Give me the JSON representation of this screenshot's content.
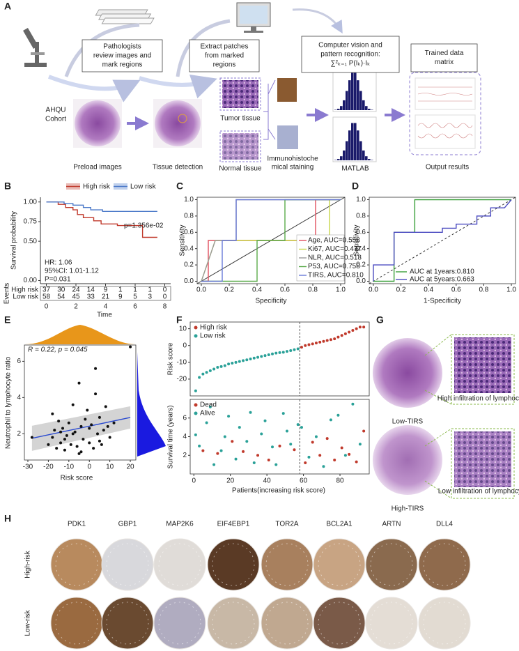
{
  "panel_labels": [
    "A",
    "B",
    "C",
    "D",
    "E",
    "F",
    "G",
    "H"
  ],
  "workflow": {
    "steps": [
      [
        "Pathologists",
        "review images and",
        "mark regions"
      ],
      [
        "Extract patches",
        "from marked",
        "regions"
      ],
      [
        "Computer vision and",
        "pattern recognition:",
        "∑²ₖ₌₁ P(Iₖ)·Iₖ"
      ],
      [
        "Trained data",
        "matrix"
      ]
    ],
    "cohort": [
      "AHQU",
      "Cohort"
    ],
    "captions": [
      "Preload images",
      "Tissue detection",
      "Tumor tissue",
      "Normal tissue",
      "MATLAB",
      "Output results"
    ],
    "staining": [
      "Immunohistoche",
      "mical staining"
    ]
  },
  "chart_data": [
    {
      "type": "line",
      "step": true,
      "xlabel": "Time",
      "ylabel": "Survival probability",
      "xlim": [
        -0.4,
        8.4
      ],
      "ylim": [
        -0.04,
        1.06
      ],
      "xticks": [
        0,
        2,
        4,
        6,
        8
      ],
      "yticks": [
        {
          "value": 0,
          "label": "0.00"
        },
        {
          "value": 0.5,
          "label": "0.50"
        },
        {
          "value": 0.75,
          "label": "0.75"
        },
        {
          "value": 1,
          "label": "1.00"
        }
      ],
      "series": [
        {
          "name": "High risk",
          "color": "#c0392b",
          "x": [
            0,
            0.8,
            1.3,
            1.8,
            2.1,
            2.5,
            3.2,
            3.7,
            4.8,
            6.5,
            7.5
          ],
          "values": [
            1.0,
            0.97,
            0.93,
            0.9,
            0.84,
            0.8,
            0.76,
            0.72,
            0.7,
            0.55,
            0.55
          ]
        },
        {
          "name": "Low risk",
          "color": "#4a78c8",
          "x": [
            0,
            1.2,
            1.8,
            2.5,
            3.0,
            3.8,
            4.5,
            7.5
          ],
          "values": [
            1.0,
            0.98,
            0.96,
            0.93,
            0.9,
            0.88,
            0.88,
            0.88
          ]
        }
      ],
      "annotations": [
        "p=1.356e-02",
        "HR: 1.06",
        "95%CI: 1.01-1.12",
        "P=0.031"
      ],
      "risk_table": {
        "title": "Events",
        "times": [
          0,
          1,
          2,
          3,
          4,
          5,
          6,
          7,
          8
        ],
        "rows": [
          {
            "name": "High risk",
            "counts": [
              37,
              30,
              24,
              14,
              9,
              1,
              1,
              1,
              0
            ]
          },
          {
            "name": "Low risk",
            "counts": [
              58,
              54,
              45,
              33,
              21,
              9,
              5,
              3,
              0
            ]
          }
        ]
      }
    },
    {
      "type": "line",
      "xlabel": "Specificity",
      "ylabel": "Sensitivity",
      "xlim": [
        -0.03,
        1.03
      ],
      "ylim": [
        -0.03,
        1.03
      ],
      "xticks": [
        {
          "value": 0,
          "label": "0.0"
        },
        0.2,
        0.4,
        0.6,
        0.8,
        {
          "value": 1,
          "label": "1.0"
        }
      ],
      "yticks": [
        {
          "value": 0,
          "label": "0.0"
        },
        0.2,
        0.4,
        0.6,
        0.8,
        {
          "value": 1,
          "label": "1.0"
        }
      ],
      "series": [
        {
          "name": "Age, AUC=0.558",
          "color": "#e0505f",
          "x": [
            0,
            0.05,
            0.05,
            0.82,
            0.82,
            1
          ],
          "values": [
            0,
            0,
            0.5,
            0.5,
            1,
            1
          ]
        },
        {
          "name": "Ki67, AUC=0.477",
          "color": "#c8d64a",
          "x": [
            0,
            0.1,
            0.92,
            0.92,
            1
          ],
          "values": [
            0,
            0.5,
            0.5,
            1,
            1
          ]
        },
        {
          "name": "NLR, AUC=0.518",
          "color": "#9a9a9a",
          "x": [
            0,
            0.1,
            0.25,
            0.25,
            1
          ],
          "values": [
            0,
            0.5,
            0.5,
            1,
            1
          ]
        },
        {
          "name": "P53, AUC=0.758",
          "color": "#5aaa4a",
          "x": [
            0,
            0.4,
            0.4,
            0.6,
            0.6,
            1
          ],
          "values": [
            0,
            0,
            0.5,
            0.5,
            1,
            1
          ]
        },
        {
          "name": "TIRS, AUC=0.810",
          "color": "#6a7ad8",
          "x": [
            0,
            0.15,
            0.15,
            0.25,
            0.25,
            1
          ],
          "values": [
            0,
            0,
            0.5,
            0.5,
            1,
            1
          ]
        }
      ]
    },
    {
      "type": "line",
      "xlabel": "1-Specificity",
      "ylabel": "Sensitivity",
      "xlim": [
        -0.03,
        1.03
      ],
      "ylim": [
        -0.03,
        1.03
      ],
      "xticks": [
        {
          "value": 0,
          "label": "0.0"
        },
        0.2,
        0.4,
        0.6,
        0.8,
        {
          "value": 1,
          "label": "1.0"
        }
      ],
      "yticks": [
        {
          "value": 0,
          "label": "0.0"
        },
        0.2,
        0.4,
        0.6,
        0.8,
        {
          "value": 1,
          "label": "1.0"
        }
      ],
      "series": [
        {
          "name": "AUC at 1years:0.810",
          "color": "#3aa03a",
          "x": [
            0,
            0.15,
            0.15,
            0.3,
            0.3,
            1
          ],
          "values": [
            0,
            0,
            0.6,
            0.6,
            1,
            1
          ]
        },
        {
          "name": "AUC at 5years:0.663",
          "color": "#4a4ac0",
          "x": [
            0,
            0,
            0.15,
            0.15,
            0.5,
            0.5,
            0.6,
            0.6,
            0.75,
            0.75,
            0.85,
            0.85,
            0.95,
            1
          ],
          "values": [
            0,
            0.2,
            0.2,
            0.6,
            0.6,
            0.65,
            0.65,
            0.7,
            0.7,
            0.8,
            0.8,
            0.9,
            0.9,
            1
          ]
        }
      ]
    },
    {
      "type": "scatter",
      "xlabel": "Risk score",
      "ylabel": "Neutrophil  to lymphocyte ratio",
      "annotations": [
        "R = 0.22, p = 0.045"
      ],
      "xlim": [
        -31.7,
        22.7
      ],
      "ylim": [
        0.55,
        6.9
      ],
      "xticks": [
        -30,
        -20,
        -10,
        0,
        10,
        20
      ],
      "yticks": [
        2,
        4,
        6
      ],
      "color": "#111111",
      "x": [
        -28,
        -20,
        -18,
        -17,
        -16,
        -15,
        -14,
        -13,
        -12,
        -11,
        -10,
        -9,
        -8,
        -7,
        -6,
        -5,
        -4,
        -3,
        -2,
        -1,
        0,
        1,
        2,
        3,
        4,
        5,
        6,
        7,
        8,
        10,
        12,
        -8,
        -4,
        -12,
        0,
        5,
        -18,
        -14,
        3,
        9,
        20,
        -5
      ],
      "values": [
        1.8,
        1.4,
        3.1,
        2.2,
        1.2,
        2.7,
        1.5,
        2.3,
        1.1,
        1.9,
        2.6,
        1.4,
        3.6,
        2.1,
        1.3,
        4.8,
        2.4,
        1.7,
        2.8,
        3.3,
        1.5,
        2.5,
        1.2,
        4.2,
        2.0,
        2.9,
        1.4,
        2.2,
        3.5,
        1.8,
        2.6,
        2.0,
        1.0,
        1.7,
        2.3,
        1.6,
        1.8,
        2.1,
        5.6,
        2.4,
        6.8,
        0.9
      ],
      "fit": {
        "x": [
          -28,
          20
        ],
        "values": [
          1.75,
          2.9
        ],
        "color": "#2a4ad0"
      }
    },
    {
      "type": "scatter",
      "ylabel": "Risk score",
      "xlim": [
        -2,
        96
      ],
      "ylim": [
        -30,
        14
      ],
      "yticks": [
        -20,
        -10,
        0,
        10
      ],
      "vline": 58,
      "series": [
        {
          "name": "High risk",
          "color": "#c0392b",
          "x": [
            59,
            61,
            63,
            65,
            67,
            69,
            71,
            73,
            75,
            77,
            79,
            81,
            83,
            85,
            87,
            89,
            91,
            93
          ],
          "values": [
            -1,
            0,
            0.5,
            1,
            1.5,
            2,
            2.5,
            3,
            3.5,
            4,
            5,
            6,
            7,
            8,
            9,
            10,
            11,
            11
          ]
        },
        {
          "name": "Low risk",
          "color": "#2aa198",
          "x": [
            1,
            3,
            5,
            7,
            9,
            11,
            13,
            15,
            17,
            19,
            21,
            23,
            25,
            27,
            29,
            31,
            33,
            35,
            37,
            39,
            41,
            43,
            45,
            47,
            49,
            51,
            53,
            55,
            57
          ],
          "values": [
            -27,
            -19,
            -17,
            -16,
            -15,
            -14,
            -13,
            -12.5,
            -12,
            -11,
            -10.5,
            -10,
            -9.5,
            -9,
            -8.5,
            -8,
            -7.5,
            -7,
            -6.5,
            -6,
            -5.5,
            -5,
            -4.5,
            -4.2,
            -4,
            -3.5,
            -3,
            -2.5,
            -2
          ]
        }
      ]
    },
    {
      "type": "scatter",
      "xlabel": "Patients(increasing risk score)",
      "ylabel": "Survival time (years)",
      "xlim": [
        -2,
        96
      ],
      "ylim": [
        0,
        8
      ],
      "xticks": [
        0,
        20,
        40,
        60,
        80
      ],
      "yticks": [
        2,
        4,
        6
      ],
      "vline": 58,
      "series": [
        {
          "name": "Dead",
          "color": "#c0392b",
          "x": [
            5,
            13,
            21,
            27,
            35,
            41,
            47,
            55,
            61,
            65,
            69,
            73,
            77,
            81,
            85,
            89,
            93
          ],
          "values": [
            2.5,
            2.2,
            3.5,
            2.4,
            2.0,
            1.5,
            3.0,
            2.6,
            1.2,
            3.4,
            2.0,
            3.8,
            1.5,
            2.8,
            2.1,
            1.3,
            4.6
          ]
        },
        {
          "name": "Alive",
          "color": "#2aa198",
          "x": [
            1,
            3,
            7,
            9,
            11,
            15,
            17,
            19,
            23,
            25,
            29,
            31,
            33,
            37,
            39,
            43,
            45,
            49,
            51,
            53,
            57,
            59,
            63,
            67,
            71,
            75,
            79,
            83,
            87,
            91
          ],
          "values": [
            4.2,
            3.0,
            5.5,
            7.2,
            1.0,
            2.5,
            4.0,
            6.2,
            1.6,
            5.0,
            3.5,
            6.6,
            1.2,
            4.3,
            5.7,
            2.9,
            1.0,
            6.5,
            4.6,
            3.2,
            5.3,
            5.0,
            1.8,
            4.0,
            0.8,
            5.8,
            6.3,
            2.0,
            7.5,
            3.2
          ]
        }
      ]
    }
  ],
  "panel_g": {
    "groups": [
      "Low-TIRS",
      "High-TIRS"
    ],
    "zoom_notes": [
      "High infiltration of lymphocyte",
      "Low infiltration of lymphocyte"
    ]
  },
  "panel_h": {
    "genes": [
      "PDK1",
      "GBP1",
      "MAP2K6",
      "EIF4EBP1",
      "TOR2A",
      "BCL2A1",
      "ARTN",
      "DLL4"
    ],
    "groups": [
      "High-risk",
      "Low-risk"
    ]
  }
}
